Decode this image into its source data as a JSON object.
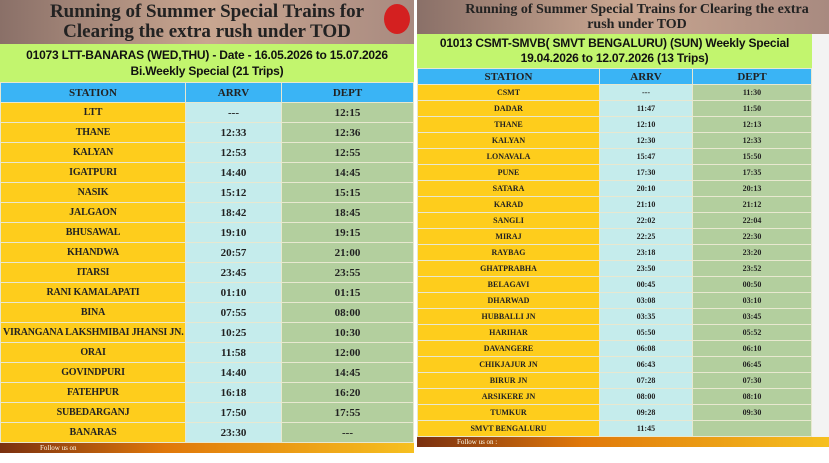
{
  "left": {
    "title": "Running of Summer Special Trains for Clearing the extra rush under TOD",
    "train_line1": "01073 LTT-BANARAS (WED,THU) - Date - 16.05.2026 to 15.07.2026",
    "train_line2": "Bi.Weekly Special (21 Trips)",
    "headers": [
      "STATION",
      "ARRV",
      "DEPT"
    ],
    "rows": [
      [
        "LTT",
        "---",
        "12:15"
      ],
      [
        "THANE",
        "12:33",
        "12:36"
      ],
      [
        "KALYAN",
        "12:53",
        "12:55"
      ],
      [
        "IGATPURI",
        "14:40",
        "14:45"
      ],
      [
        "NASIK",
        "15:12",
        "15:15"
      ],
      [
        "JALGAON",
        "18:42",
        "18:45"
      ],
      [
        "BHUSAWAL",
        "19:10",
        "19:15"
      ],
      [
        "KHANDWA",
        "20:57",
        "21:00"
      ],
      [
        "ITARSI",
        "23:45",
        "23:55"
      ],
      [
        "RANI KAMALAPATI",
        "01:10",
        "01:15"
      ],
      [
        "BINA",
        "07:55",
        "08:00"
      ],
      [
        "VIRANGANA LAKSHMIBAI JHANSI JN.",
        "10:25",
        "10:30"
      ],
      [
        "ORAI",
        "11:58",
        "12:00"
      ],
      [
        "GOVINDPURI",
        "14:40",
        "14:45"
      ],
      [
        "FATEHPUR",
        "16:18",
        "16:20"
      ],
      [
        "SUBEDARGANJ",
        "17:50",
        "17:55"
      ],
      [
        "BANARAS",
        "23:30",
        "---"
      ]
    ],
    "footer": "Follow us on"
  },
  "right": {
    "title": "Running of Summer Special Trains for Clearing the extra rush under TOD",
    "train_line1": "01013 CSMT-SMVB( SMVT BENGALURU) (SUN) Weekly Special",
    "train_line2": "19.04.2026 to 12.07.2026 (13 Trips)",
    "headers": [
      "STATION",
      "ARRV",
      "DEPT"
    ],
    "rows": [
      [
        "CSMT",
        "---",
        "11:30"
      ],
      [
        "DADAR",
        "11:47",
        "11:50"
      ],
      [
        "THANE",
        "12:10",
        "12:13"
      ],
      [
        "KALYAN",
        "12:30",
        "12:33"
      ],
      [
        "LONAVALA",
        "15:47",
        "15:50"
      ],
      [
        "PUNE",
        "17:30",
        "17:35"
      ],
      [
        "SATARA",
        "20:10",
        "20:13"
      ],
      [
        "KARAD",
        "21:10",
        "21:12"
      ],
      [
        "SANGLI",
        "22:02",
        "22:04"
      ],
      [
        "MIRAJ",
        "22:25",
        "22:30"
      ],
      [
        "RAYBAG",
        "23:18",
        "23:20"
      ],
      [
        "GHATPRABHA",
        "23:50",
        "23:52"
      ],
      [
        "BELAGAVI",
        "00:45",
        "00:50"
      ],
      [
        "DHARWAD",
        "03:08",
        "03:10"
      ],
      [
        "HUBBALLI JN",
        "03:35",
        "03:45"
      ],
      [
        "HARIHAR",
        "05:50",
        "05:52"
      ],
      [
        "DAVANGERE",
        "06:08",
        "06:10"
      ],
      [
        "CHIKJAJUR JN",
        "06:43",
        "06:45"
      ],
      [
        "BIRUR JN",
        "07:28",
        "07:30"
      ],
      [
        "ARSIKERE JN",
        "08:00",
        "08:10"
      ],
      [
        "TUMKUR",
        "09:28",
        "09:30"
      ],
      [
        "SMVT BENGALURU",
        "11:45",
        ""
      ]
    ],
    "footer": "Follow us on :"
  }
}
